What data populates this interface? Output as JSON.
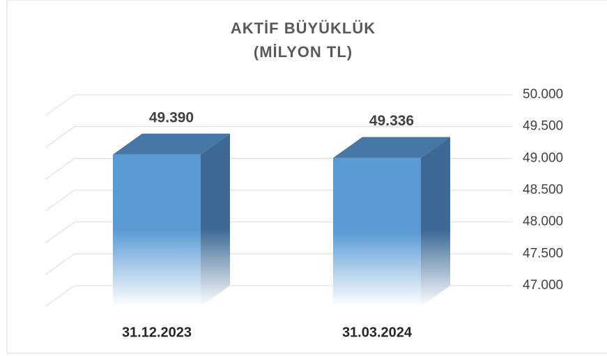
{
  "chart_data": {
    "type": "bar3d",
    "title": "AKTİF BÜYÜKLÜK",
    "subtitle": "(MİLYON TL)",
    "categories": [
      "31.12.2023",
      "31.03.2024"
    ],
    "values": [
      49390,
      49336
    ],
    "value_labels": [
      "49.390",
      "49.336"
    ],
    "color": "#5b9bd5",
    "ylim": [
      47000,
      50000
    ],
    "yticks": [
      {
        "value": 47000,
        "label": "47.000"
      },
      {
        "value": 47500,
        "label": "47.500"
      },
      {
        "value": 48000,
        "label": "48.000"
      },
      {
        "value": 48500,
        "label": "48.500"
      },
      {
        "value": 49000,
        "label": "49.000"
      },
      {
        "value": 49500,
        "label": "49.500"
      },
      {
        "value": 50000,
        "label": "50.000"
      }
    ],
    "grid": true
  }
}
